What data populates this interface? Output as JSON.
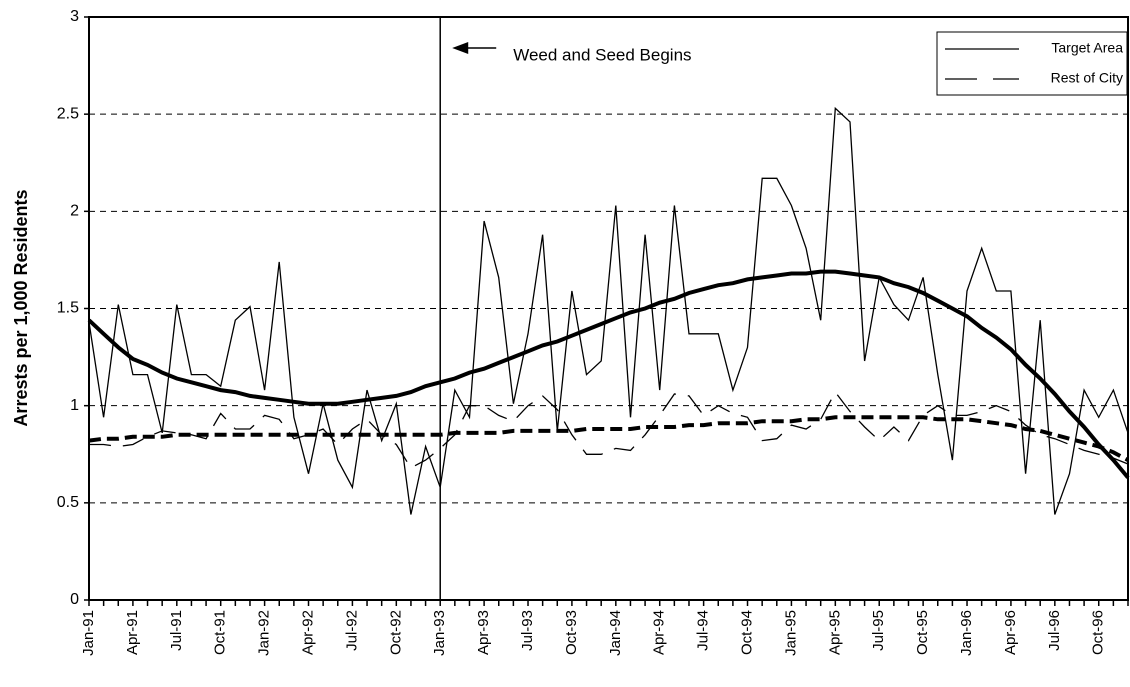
{
  "chart_data": {
    "type": "line",
    "y_label": "Arrests per 1,000 Residents",
    "categories": [
      "Jan-91",
      null,
      null,
      "Apr-91",
      null,
      null,
      "Jul-91",
      null,
      null,
      "Oct-91",
      null,
      null,
      "Jan-92",
      null,
      null,
      "Apr-92",
      null,
      null,
      "Jul-92",
      null,
      null,
      "Oct-92",
      null,
      null,
      "Jan-93",
      null,
      null,
      "Apr-93",
      null,
      null,
      "Jul-93",
      null,
      null,
      "Oct-93",
      null,
      null,
      "Jan-94",
      null,
      null,
      "Apr-94",
      null,
      null,
      "Jul-94",
      null,
      null,
      "Oct-94",
      null,
      null,
      "Jan-95",
      null,
      null,
      "Apr-95",
      null,
      null,
      "Jul-95",
      null,
      null,
      "Oct-95",
      null,
      null,
      "Jan-96",
      null,
      null,
      "Apr-96",
      null,
      null,
      "Jul-96",
      null,
      null,
      "Oct-96",
      null,
      null
    ],
    "series": [
      {
        "name": "Target Area",
        "color": "#000000",
        "dash": "solid",
        "values": [
          1.43,
          0.94,
          1.52,
          1.16,
          1.16,
          0.86,
          1.52,
          1.16,
          1.16,
          1.1,
          1.44,
          1.51,
          1.08,
          1.74,
          0.94,
          0.65,
          1.01,
          0.72,
          0.58,
          1.08,
          0.82,
          1.01,
          0.44,
          0.79,
          0.58,
          1.08,
          0.94,
          1.95,
          1.66,
          1.01,
          1.37,
          1.88,
          0.87,
          1.59,
          1.16,
          1.23,
          2.03,
          0.94,
          1.88,
          1.08,
          2.03,
          1.37,
          1.37,
          1.37,
          1.08,
          1.3,
          2.17,
          2.17,
          2.03,
          1.81,
          1.44,
          2.53,
          2.46,
          1.23,
          1.66,
          1.52,
          1.44,
          1.66,
          1.16,
          0.72,
          1.59,
          1.81,
          1.59,
          1.59,
          0.65,
          1.44,
          0.44,
          0.65,
          1.08,
          0.94,
          1.08,
          0.86
        ]
      },
      {
        "name": "Rest of City",
        "color": "#000000",
        "dash": "dashed",
        "values": [
          0.8,
          0.8,
          0.79,
          0.8,
          0.84,
          0.87,
          0.86,
          0.85,
          0.83,
          0.96,
          0.88,
          0.88,
          0.95,
          0.93,
          0.83,
          0.85,
          0.88,
          0.8,
          0.88,
          0.93,
          0.85,
          0.8,
          0.68,
          0.72,
          0.78,
          0.85,
          1.0,
          1.0,
          0.95,
          0.92,
          1.0,
          1.05,
          0.98,
          0.85,
          0.75,
          0.75,
          0.78,
          0.77,
          0.85,
          0.95,
          1.06,
          1.05,
          0.95,
          1.0,
          0.96,
          0.94,
          0.82,
          0.83,
          0.9,
          0.88,
          0.93,
          1.07,
          0.97,
          0.89,
          0.82,
          0.89,
          0.82,
          0.95,
          1.0,
          0.95,
          0.95,
          0.97,
          1.0,
          0.97,
          0.9,
          0.85,
          0.83,
          0.8,
          0.77,
          0.75,
          0.73,
          0.7
        ]
      }
    ],
    "trend_lines": [
      {
        "color": "#000000",
        "dash": "solid",
        "values": [
          1.44,
          1.37,
          1.3,
          1.24,
          1.21,
          1.17,
          1.14,
          1.12,
          1.1,
          1.08,
          1.07,
          1.05,
          1.04,
          1.03,
          1.02,
          1.01,
          1.01,
          1.01,
          1.02,
          1.03,
          1.04,
          1.05,
          1.07,
          1.1,
          1.12,
          1.14,
          1.17,
          1.19,
          1.22,
          1.25,
          1.28,
          1.31,
          1.33,
          1.36,
          1.39,
          1.42,
          1.45,
          1.48,
          1.5,
          1.53,
          1.55,
          1.58,
          1.6,
          1.62,
          1.63,
          1.65,
          1.66,
          1.67,
          1.68,
          1.68,
          1.69,
          1.69,
          1.68,
          1.67,
          1.66,
          1.63,
          1.61,
          1.58,
          1.54,
          1.5,
          1.46,
          1.4,
          1.35,
          1.29,
          1.21,
          1.14,
          1.06,
          0.97,
          0.89,
          0.8,
          0.72,
          0.63
        ]
      },
      {
        "color": "#000000",
        "dash": "dashed",
        "values": [
          0.82,
          0.83,
          0.83,
          0.84,
          0.84,
          0.84,
          0.85,
          0.85,
          0.85,
          0.85,
          0.85,
          0.85,
          0.85,
          0.85,
          0.85,
          0.85,
          0.85,
          0.85,
          0.85,
          0.85,
          0.85,
          0.85,
          0.85,
          0.85,
          0.85,
          0.86,
          0.86,
          0.86,
          0.86,
          0.87,
          0.87,
          0.87,
          0.87,
          0.87,
          0.88,
          0.88,
          0.88,
          0.88,
          0.89,
          0.89,
          0.89,
          0.9,
          0.9,
          0.91,
          0.91,
          0.91,
          0.92,
          0.92,
          0.92,
          0.93,
          0.93,
          0.94,
          0.94,
          0.94,
          0.94,
          0.94,
          0.94,
          0.94,
          0.93,
          0.93,
          0.93,
          0.92,
          0.91,
          0.9,
          0.88,
          0.87,
          0.85,
          0.83,
          0.81,
          0.79,
          0.76,
          0.72
        ]
      }
    ],
    "annotation": {
      "text": "Weed and Seed Begins",
      "at": "Jan-93"
    },
    "ylim": [
      0,
      3
    ],
    "yticks": [
      0,
      0.5,
      1,
      1.5,
      2,
      2.5,
      3
    ],
    "grid": true,
    "legend": "top-right"
  }
}
